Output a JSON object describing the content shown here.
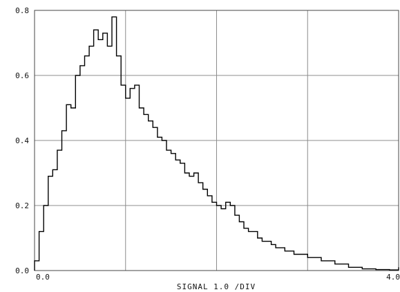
{
  "chart_data": {
    "type": "line",
    "style": "step",
    "title": "",
    "xlabel": "SIGNAL 1.0 /DIV",
    "ylabel": "",
    "xlim": [
      0.0,
      4.0
    ],
    "ylim": [
      0.0,
      0.8
    ],
    "x_tick_labels": [
      "0.0",
      "4.0"
    ],
    "y_tick_labels": [
      "0.0",
      "0.2",
      "0.4",
      "0.6",
      "0.8"
    ],
    "grid": true,
    "legend": "none",
    "line_color": "#000000",
    "grid_color": "#8c8c8c",
    "series": [
      {
        "x": [
          0.0,
          0.05,
          0.1,
          0.15,
          0.2,
          0.25,
          0.3,
          0.35,
          0.4,
          0.45,
          0.5,
          0.55,
          0.6,
          0.65,
          0.7,
          0.75,
          0.8,
          0.85,
          0.9,
          0.95,
          1.0,
          1.05,
          1.1,
          1.15,
          1.2,
          1.25,
          1.3,
          1.35,
          1.4,
          1.45,
          1.5,
          1.55,
          1.6,
          1.65,
          1.7,
          1.75,
          1.8,
          1.85,
          1.9,
          1.95,
          2.0,
          2.05,
          2.1,
          2.15,
          2.2,
          2.25,
          2.3,
          2.35,
          2.4,
          2.45,
          2.5,
          2.55,
          2.6,
          2.65,
          2.7,
          2.75,
          2.8,
          2.85,
          2.9,
          2.95,
          3.0,
          3.05,
          3.1,
          3.15,
          3.2,
          3.25,
          3.3,
          3.35,
          3.4,
          3.45,
          3.5,
          3.55,
          3.6,
          3.65,
          3.7,
          3.75,
          3.8,
          3.85,
          3.9,
          3.95,
          4.0
        ],
        "values": [
          0.03,
          0.12,
          0.2,
          0.29,
          0.31,
          0.37,
          0.43,
          0.51,
          0.5,
          0.6,
          0.63,
          0.66,
          0.69,
          0.74,
          0.71,
          0.73,
          0.69,
          0.78,
          0.66,
          0.57,
          0.53,
          0.56,
          0.57,
          0.5,
          0.48,
          0.46,
          0.44,
          0.41,
          0.4,
          0.37,
          0.36,
          0.34,
          0.33,
          0.3,
          0.29,
          0.3,
          0.27,
          0.25,
          0.23,
          0.21,
          0.2,
          0.19,
          0.21,
          0.2,
          0.17,
          0.15,
          0.13,
          0.12,
          0.12,
          0.1,
          0.09,
          0.09,
          0.08,
          0.07,
          0.07,
          0.06,
          0.06,
          0.05,
          0.05,
          0.05,
          0.04,
          0.04,
          0.04,
          0.03,
          0.03,
          0.03,
          0.02,
          0.02,
          0.02,
          0.01,
          0.01,
          0.01,
          0.005,
          0.005,
          0.005,
          0.003,
          0.003,
          0.003,
          0.002,
          0.002,
          0.01
        ]
      }
    ]
  }
}
